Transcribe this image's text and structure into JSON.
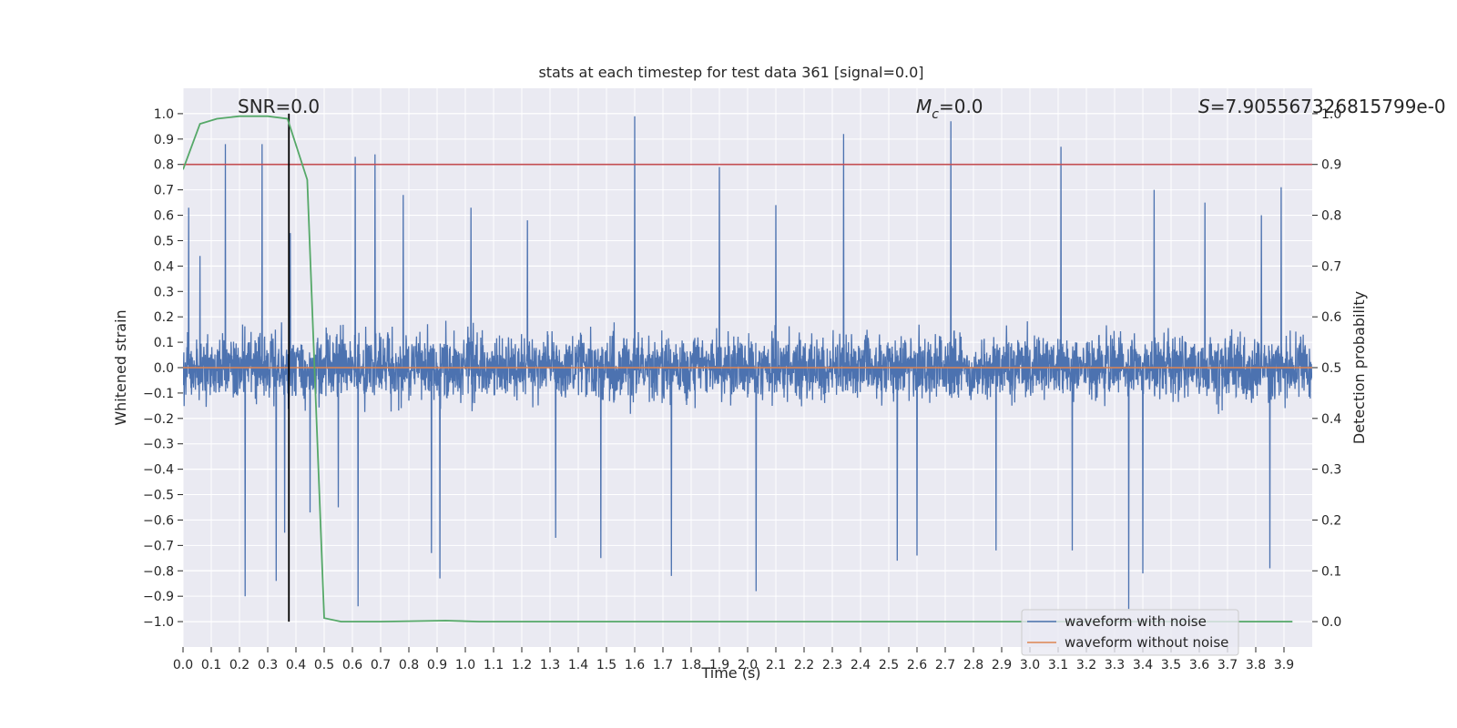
{
  "chart_data": {
    "type": "line",
    "title": "stats at each timestep for test data 361 [signal=0.0]",
    "xlabel": "Time (s)",
    "ylabel": "Whitened strain",
    "ylabel_right": "Detection probability",
    "xlim": [
      0.0,
      4.0
    ],
    "ylim": [
      -1.1,
      1.1
    ],
    "ylim_right": [
      -0.05,
      1.05
    ],
    "x_ticks": [
      "0.0",
      "0.1",
      "0.2",
      "0.3",
      "0.4",
      "0.5",
      "0.6",
      "0.7",
      "0.8",
      "0.9",
      "1.0",
      "1.1",
      "1.2",
      "1.3",
      "1.4",
      "1.5",
      "1.6",
      "1.7",
      "1.8",
      "1.9",
      "2.0",
      "2.1",
      "2.2",
      "2.3",
      "2.4",
      "2.5",
      "2.6",
      "2.7",
      "2.8",
      "2.9",
      "3.0",
      "3.1",
      "3.2",
      "3.3",
      "3.4",
      "3.5",
      "3.6",
      "3.7",
      "3.8",
      "3.9"
    ],
    "y_ticks": [
      "1.0",
      "0.9",
      "0.8",
      "0.7",
      "0.6",
      "0.5",
      "0.4",
      "0.3",
      "0.2",
      "0.1",
      "0.0",
      "-0.1",
      "-0.2",
      "-0.3",
      "-0.4",
      "-0.5",
      "-0.6",
      "-0.7",
      "-0.8",
      "-0.9",
      "-1.0"
    ],
    "y_ticks_right": [
      "1.0",
      "0.9",
      "0.8",
      "0.7",
      "0.6",
      "0.5",
      "0.4",
      "0.3",
      "0.2",
      "0.1",
      "0.0"
    ],
    "annotations": {
      "snr": "SNR=0.0",
      "mc_symbol": "M",
      "mc_sub": "c",
      "mc_value": "=0.0",
      "s_symbol": "S",
      "s_value": "=7.905567326815799e-0"
    },
    "legend": {
      "placement": "lower-right",
      "entries": [
        "waveform with noise",
        "waveform without noise"
      ]
    },
    "colors": {
      "noise": "#4c72b0",
      "clean": "#dd8452",
      "probability": "#55a868",
      "threshold": "#c44e52",
      "marker": "#000000",
      "background": "#eaeaf2"
    },
    "series": [
      {
        "name": "waveform with noise",
        "note": "dense noise trace; representative extreme peaks (time, value)",
        "spikes": [
          [
            0.02,
            0.63
          ],
          [
            0.06,
            0.44
          ],
          [
            0.15,
            0.88
          ],
          [
            0.22,
            -0.9
          ],
          [
            0.28,
            0.88
          ],
          [
            0.33,
            -0.84
          ],
          [
            0.36,
            -0.65
          ],
          [
            0.38,
            0.53
          ],
          [
            0.45,
            -0.57
          ],
          [
            0.55,
            -0.55
          ],
          [
            0.61,
            0.83
          ],
          [
            0.62,
            -0.94
          ],
          [
            0.68,
            0.84
          ],
          [
            0.78,
            0.68
          ],
          [
            0.88,
            -0.73
          ],
          [
            0.91,
            -0.83
          ],
          [
            1.02,
            0.63
          ],
          [
            1.22,
            0.58
          ],
          [
            1.32,
            -0.67
          ],
          [
            1.48,
            -0.75
          ],
          [
            1.6,
            0.99
          ],
          [
            1.73,
            -0.82
          ],
          [
            1.9,
            0.79
          ],
          [
            2.03,
            -0.88
          ],
          [
            2.1,
            0.64
          ],
          [
            2.34,
            0.92
          ],
          [
            2.53,
            -0.76
          ],
          [
            2.6,
            -0.74
          ],
          [
            2.72,
            0.97
          ],
          [
            2.88,
            -0.72
          ],
          [
            3.11,
            0.87
          ],
          [
            3.15,
            -0.72
          ],
          [
            3.35,
            -0.95
          ],
          [
            3.4,
            -0.81
          ],
          [
            3.44,
            0.7
          ],
          [
            3.62,
            0.65
          ],
          [
            3.82,
            0.6
          ],
          [
            3.85,
            -0.79
          ],
          [
            3.89,
            0.71
          ]
        ]
      },
      {
        "name": "waveform without noise",
        "x": [
          0.0,
          4.0
        ],
        "y": [
          0.0,
          0.0
        ]
      },
      {
        "name": "detection probability",
        "axis": "right",
        "x": [
          0.0,
          0.06,
          0.12,
          0.2,
          0.3,
          0.37,
          0.44,
          0.5,
          0.56,
          0.7,
          0.93,
          1.05,
          1.5,
          2.0,
          3.0,
          3.93
        ],
        "y": [
          0.89,
          0.98,
          0.99,
          0.995,
          0.995,
          0.99,
          0.87,
          0.007,
          0.0,
          0.0,
          0.002,
          0.0,
          0.0,
          0.0,
          0.0,
          0.0
        ]
      }
    ],
    "threshold_line": {
      "axis": "right",
      "y": 0.9
    },
    "marker_line": {
      "x": 0.375,
      "y_range": [
        -1.0,
        1.0
      ]
    }
  }
}
